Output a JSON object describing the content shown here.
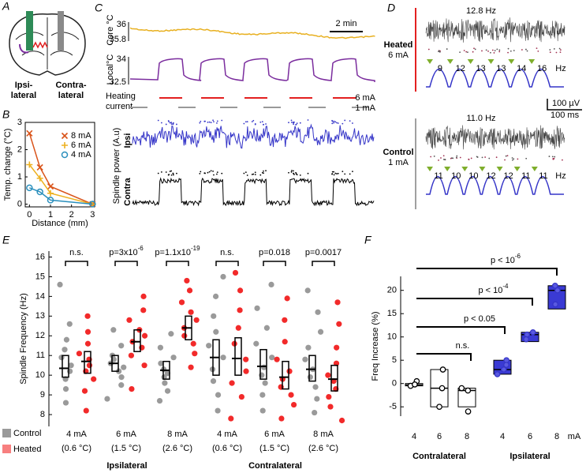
{
  "panels": {
    "A": {
      "letter": "A",
      "ipsi": [
        "Ipsi-",
        "lateral"
      ],
      "contra": [
        "Contra-",
        "lateral"
      ]
    },
    "C": {
      "letter": "C",
      "core": {
        "label": "Core °C",
        "ticks": [
          "36",
          "35.8"
        ]
      },
      "local": {
        "label": "Local°C",
        "ticks": [
          "34",
          "32.5"
        ]
      },
      "scale": "2 min",
      "heating": [
        "Heating",
        "current"
      ],
      "high": "6 mA",
      "low": "1 mA",
      "ylabel": "Spindle power (A.u)",
      "ipsi": "Ipsi",
      "contra": "Contra"
    },
    "D": {
      "letter": "D",
      "heated": {
        "freq": "12.8 Hz",
        "label": "Heated",
        "current": "6 mA",
        "cycles": [
          "9",
          "12",
          "13",
          "13",
          "14",
          "16"
        ],
        "unit": "Hz"
      },
      "control": {
        "freq": "11.0 Hz",
        "label": "Control",
        "current": "1 mA",
        "cycles": [
          "11",
          "10",
          "10",
          "12",
          "12",
          "11",
          "11"
        ],
        "unit": "Hz"
      },
      "scale": [
        "100 µV",
        "100 ms"
      ]
    }
  },
  "chart_data": [
    {
      "panel": "B",
      "type": "line",
      "ylabel": "Temp. change (°C)",
      "xlabel": "Distance (mm)",
      "x": [
        0,
        0.5,
        1,
        3
      ],
      "xlim": [
        -0.2,
        3.1
      ],
      "ylim": [
        -0.1,
        3
      ],
      "xticks": [
        0,
        1,
        2,
        3
      ],
      "yticks": [
        0,
        1,
        2,
        3
      ],
      "series": [
        {
          "name": "8 mA",
          "color": "#d95319",
          "marker": "x",
          "values": [
            2.6,
            1.35,
            0.65,
            0
          ]
        },
        {
          "name": "6 mA",
          "color": "#edb120",
          "marker": "+",
          "values": [
            1.45,
            0.95,
            0.4,
            0
          ]
        },
        {
          "name": "4 mA",
          "color": "#2a8fbd",
          "marker": "o",
          "values": [
            0.6,
            0.45,
            0.15,
            0
          ]
        }
      ]
    },
    {
      "panel": "E",
      "type": "box-scatter",
      "ylabel": "Spindle Frequency (Hz)",
      "ylim": [
        7.4,
        16.3
      ],
      "yticks": [
        8,
        9,
        10,
        11,
        12,
        13,
        14,
        15,
        16
      ],
      "series": [
        {
          "name": "Control",
          "color": "#9a9a9a"
        },
        {
          "name": "Heated",
          "color": "#f22a2a"
        }
      ],
      "groups": [
        {
          "name": "Ipsilateral",
          "color": "#3535c8",
          "categories": [
            {
              "label": "4 mA",
              "sublabel": "(0.6 °C)",
              "p": {
                "text": "n.s."
              },
              "control": {
                "q1": 9.9,
                "median": 10.35,
                "q3": 11.0,
                "points": [
                  14.6,
                  12.6,
                  11.8,
                  11.3,
                  10.9,
                  10.5,
                  10.2,
                  9.8,
                  9.3,
                  8.6
                ]
              },
              "heated": {
                "q1": 10.1,
                "median": 10.7,
                "q3": 11.2,
                "points": [
                  13.0,
                  12.2,
                  11.6,
                  11.1,
                  10.8,
                  10.5,
                  10.2,
                  9.8,
                  9.2,
                  8.2
                ]
              }
            },
            {
              "label": "6 mA",
              "sublabel": "(1.5 °C)",
              "p": {
                "text": "p=3x10",
                "exp": "-6"
              },
              "control": {
                "q1": 10.2,
                "median": 10.6,
                "q3": 11.0,
                "points": [
                  12.3,
                  11.5,
                  11.0,
                  10.8,
                  10.6,
                  10.4,
                  10.2,
                  9.9,
                  9.5,
                  8.8
                ]
              },
              "heated": {
                "q1": 11.2,
                "median": 11.7,
                "q3": 12.3,
                "points": [
                  14.0,
                  13.3,
                  12.8,
                  12.3,
                  12.0,
                  11.7,
                  11.4,
                  11.0,
                  10.5,
                  9.3
                ]
              }
            },
            {
              "label": "8 mA",
              "sublabel": "(2.6 °C)",
              "p": {
                "text": "p=1.1x10",
                "exp": "-19"
              },
              "control": {
                "q1": 9.8,
                "median": 10.25,
                "q3": 10.7,
                "points": [
                  12.1,
                  11.4,
                  10.9,
                  10.6,
                  10.3,
                  10.1,
                  9.9,
                  9.6,
                  9.2,
                  8.7
                ]
              },
              "heated": {
                "q1": 11.8,
                "median": 12.4,
                "q3": 13.0,
                "points": [
                  14.8,
                  14.3,
                  13.7,
                  13.2,
                  12.8,
                  12.4,
                  12.0,
                  11.6,
                  11.1,
                  10.4
                ]
              }
            }
          ]
        },
        {
          "name": "Contralateral",
          "color": "#000000",
          "categories": [
            {
              "label": "4 mA",
              "sublabel": "(0.6 °C)",
              "p": {
                "text": "n.s."
              },
              "control": {
                "q1": 10.0,
                "median": 10.9,
                "q3": 11.8,
                "points": [
                  15.0,
                  14.0,
                  13.0,
                  12.2,
                  11.5,
                  10.9,
                  10.3,
                  9.7,
                  9.0,
                  8.2
                ]
              },
              "heated": {
                "q1": 10.0,
                "median": 10.85,
                "q3": 11.9,
                "points": [
                  15.2,
                  14.3,
                  13.3,
                  12.4,
                  11.6,
                  10.8,
                  10.2,
                  9.6,
                  8.9,
                  7.8
                ]
              }
            },
            {
              "label": "6 mA",
              "sublabel": "(1.5 °C)",
              "p": {
                "text": "p=0.018"
              },
              "control": {
                "q1": 9.8,
                "median": 10.45,
                "q3": 11.3,
                "points": [
                  14.6,
                  13.4,
                  12.4,
                  11.6,
                  10.9,
                  10.4,
                  10.0,
                  9.6,
                  9.0,
                  8.2
                ]
              },
              "heated": {
                "q1": 9.3,
                "median": 9.9,
                "q3": 10.7,
                "points": [
                  13.9,
                  12.8,
                  11.7,
                  10.8,
                  10.2,
                  9.8,
                  9.4,
                  9.0,
                  8.5,
                  7.8
                ]
              }
            },
            {
              "label": "8 mA",
              "sublabel": "(2.6 °C)",
              "p": {
                "text": "p=0.0017"
              },
              "control": {
                "q1": 9.7,
                "median": 10.3,
                "q3": 11.0,
                "points": [
                  14.3,
                  13.2,
                  12.2,
                  11.4,
                  10.8,
                  10.3,
                  9.9,
                  9.4,
                  8.8,
                  8.1
                ]
              },
              "heated": {
                "q1": 9.2,
                "median": 9.8,
                "q3": 10.5,
                "points": [
                  13.7,
                  12.6,
                  11.4,
                  10.6,
                  10.0,
                  9.7,
                  9.3,
                  8.9,
                  8.4,
                  7.7
                ]
              }
            }
          ]
        }
      ]
    },
    {
      "panel": "F",
      "type": "box-scatter",
      "ylabel": "Freq Increase (%)",
      "ylim": [
        -7,
        23
      ],
      "yticks": [
        -5,
        0,
        5,
        10,
        15,
        20
      ],
      "unit": "mA",
      "groups": [
        {
          "name": "Contralateral",
          "color": "#000000",
          "fill": "#ffffff",
          "categories": [
            {
              "label": "4",
              "q1": -0.5,
              "median": -0.3,
              "q3": 0,
              "points": [
                -0.5,
                0.5,
                -0.2
              ]
            },
            {
              "label": "6",
              "q1": -5,
              "median": -1,
              "q3": 3,
              "points": [
                3,
                -1,
                -5
              ]
            },
            {
              "label": "8",
              "q1": -5,
              "median": -1.5,
              "q3": -1,
              "points": [
                -1,
                -1.5,
                -6
              ]
            }
          ]
        },
        {
          "name": "Ipsilateral",
          "color": "#3535c8",
          "fill": "#3a3ad4",
          "categories": [
            {
              "label": "4",
              "q1": 2,
              "median": 3,
              "q3": 5,
              "points": [
                5,
                4,
                2,
                3
              ]
            },
            {
              "label": "6",
              "q1": 9,
              "median": 10.5,
              "q3": 11,
              "points": [
                10.5,
                11,
                9.5
              ]
            },
            {
              "label": "8",
              "q1": 16,
              "median": 20,
              "q3": 21,
              "points": [
                21,
                20,
                17
              ]
            }
          ]
        }
      ],
      "comparisons": [
        {
          "text": "n.s."
        },
        {
          "text": "p < 0.05"
        },
        {
          "text": "p < 10",
          "exp": "-4"
        },
        {
          "text": "p < 10",
          "exp": "-6"
        }
      ]
    }
  ]
}
